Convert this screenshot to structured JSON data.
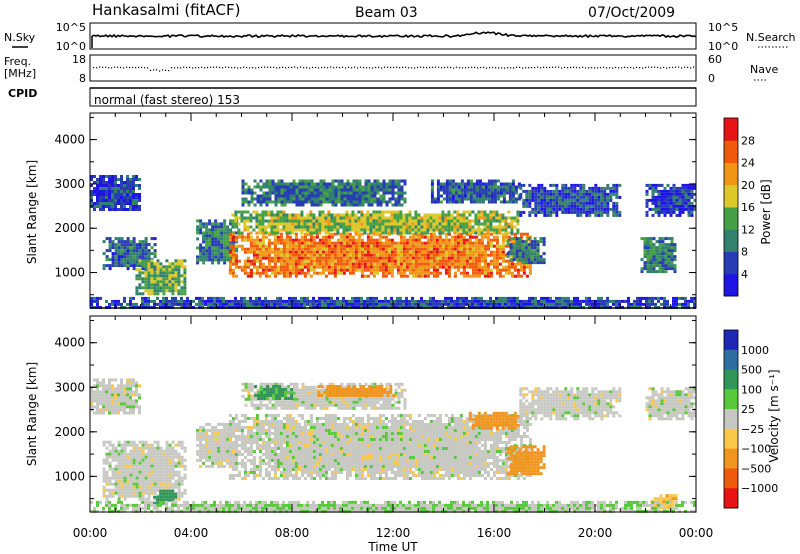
{
  "header": {
    "station": "Hankasalmi (fitACF)",
    "beam": "Beam 03",
    "date": "07/Oct/2009"
  },
  "strips": {
    "nsky": {
      "left_label": "N.Sky",
      "tick_top": "10^5",
      "tick_bottom": "10^0",
      "right_label": "N.Search",
      "right_tick_top": "10^5",
      "right_tick_bottom": "10^0"
    },
    "freq": {
      "left_label_line1": "Freq.",
      "left_label_line2": "[MHz]",
      "tick_top": "18",
      "tick_bottom": "8",
      "right_label": "Nave",
      "right_tick_top": "60",
      "right_tick_bottom": "0"
    },
    "cpid": {
      "left_label": "CPID",
      "text": "normal (fast stereo) 153"
    }
  },
  "time_axis": {
    "label": "Time UT",
    "ticks": [
      "00:00",
      "04:00",
      "08:00",
      "12:00",
      "16:00",
      "20:00",
      "00:00"
    ]
  },
  "chart_data": [
    {
      "type": "heatmap",
      "ylabel": "Slant Range [km]",
      "xlabel": "Time UT",
      "x_range_hours": [
        0,
        24
      ],
      "ylim": [
        200,
        4600
      ],
      "yticks": [
        "1000",
        "2000",
        "3000",
        "4000"
      ],
      "colorbar": {
        "label": "Power [dB]",
        "ticks": [
          "4",
          "8",
          "12",
          "16",
          "20",
          "24",
          "28"
        ],
        "colors": [
          "#1e14e6",
          "#283cb4",
          "#32806e",
          "#46a046",
          "#dcc828",
          "#f09614",
          "#f05a0a",
          "#e61414"
        ]
      },
      "regions": [
        {
          "t": [
            0.5,
            2.6
          ],
          "r": [
            1100,
            1800
          ],
          "power": 8
        },
        {
          "t": [
            1.8,
            3.8
          ],
          "r": [
            500,
            1300
          ],
          "power": 14
        },
        {
          "t": [
            0.0,
            2.0
          ],
          "r": [
            2400,
            3200
          ],
          "power": 6
        },
        {
          "t": [
            4.2,
            5.8
          ],
          "r": [
            1200,
            2200
          ],
          "power": 10
        },
        {
          "t": [
            5.5,
            17.5
          ],
          "r": [
            950,
            1900
          ],
          "power": 24
        },
        {
          "t": [
            5.6,
            17.0
          ],
          "r": [
            1900,
            2400
          ],
          "power": 16
        },
        {
          "t": [
            6.0,
            12.5
          ],
          "r": [
            2500,
            3100
          ],
          "power": 9
        },
        {
          "t": [
            13.5,
            17.0
          ],
          "r": [
            2600,
            3100
          ],
          "power": 8
        },
        {
          "t": [
            17.0,
            21.0
          ],
          "r": [
            2300,
            3000
          ],
          "power": 6
        },
        {
          "t": [
            16.5,
            18.0
          ],
          "r": [
            1200,
            1800
          ],
          "power": 10
        },
        {
          "t": [
            21.8,
            23.2
          ],
          "r": [
            1000,
            1800
          ],
          "power": 10
        },
        {
          "t": [
            22.0,
            24.0
          ],
          "r": [
            2300,
            3000
          ],
          "power": 5
        },
        {
          "t": [
            0.0,
            24.0
          ],
          "r": [
            200,
            450
          ],
          "power": 6
        }
      ]
    },
    {
      "type": "heatmap",
      "ylabel": "Slant Range [km]",
      "xlabel": "Time UT",
      "x_range_hours": [
        0,
        24
      ],
      "ylim": [
        200,
        4600
      ],
      "yticks": [
        "1000",
        "2000",
        "3000",
        "4000"
      ],
      "colorbar": {
        "label": "Velocity [m s⁻¹]",
        "ticks": [
          "1000",
          "500",
          "100",
          "25",
          "−25",
          "−100",
          "−500",
          "−1000"
        ],
        "colors": [
          "#1e28b4",
          "#2d6ea0",
          "#32965a",
          "#5ac83c",
          "#c8c8c3",
          "#fac84b",
          "#f0961e",
          "#f05a0a",
          "#e61414"
        ]
      },
      "regions": [
        {
          "t": [
            0.0,
            2.0
          ],
          "r": [
            2400,
            3200
          ],
          "velocity": 0
        },
        {
          "t": [
            0.5,
            3.8
          ],
          "r": [
            500,
            1800
          ],
          "velocity": 0
        },
        {
          "t": [
            2.5,
            3.4
          ],
          "r": [
            400,
            700
          ],
          "velocity": 150
        },
        {
          "t": [
            4.2,
            5.8
          ],
          "r": [
            1200,
            2200
          ],
          "velocity": 0
        },
        {
          "t": [
            5.5,
            17.5
          ],
          "r": [
            950,
            2400
          ],
          "velocity": 0
        },
        {
          "t": [
            6.0,
            12.5
          ],
          "r": [
            2500,
            3100
          ],
          "velocity": 0
        },
        {
          "t": [
            6.5,
            8.0
          ],
          "r": [
            2750,
            3050
          ],
          "velocity": 120
        },
        {
          "t": [
            9.0,
            12.0
          ],
          "r": [
            2800,
            3050
          ],
          "velocity": -300
        },
        {
          "t": [
            15.0,
            17.0
          ],
          "r": [
            2100,
            2450
          ],
          "velocity": -400
        },
        {
          "t": [
            16.5,
            18.0
          ],
          "r": [
            1050,
            1700
          ],
          "velocity": -300
        },
        {
          "t": [
            17.0,
            21.0
          ],
          "r": [
            2300,
            3000
          ],
          "velocity": 0
        },
        {
          "t": [
            22.0,
            24.0
          ],
          "r": [
            2300,
            3000
          ],
          "velocity": 0
        },
        {
          "t": [
            22.2,
            23.2
          ],
          "r": [
            300,
            600
          ],
          "velocity": -80
        },
        {
          "t": [
            0.0,
            24.0
          ],
          "r": [
            200,
            450
          ],
          "velocity": 20
        }
      ]
    }
  ]
}
